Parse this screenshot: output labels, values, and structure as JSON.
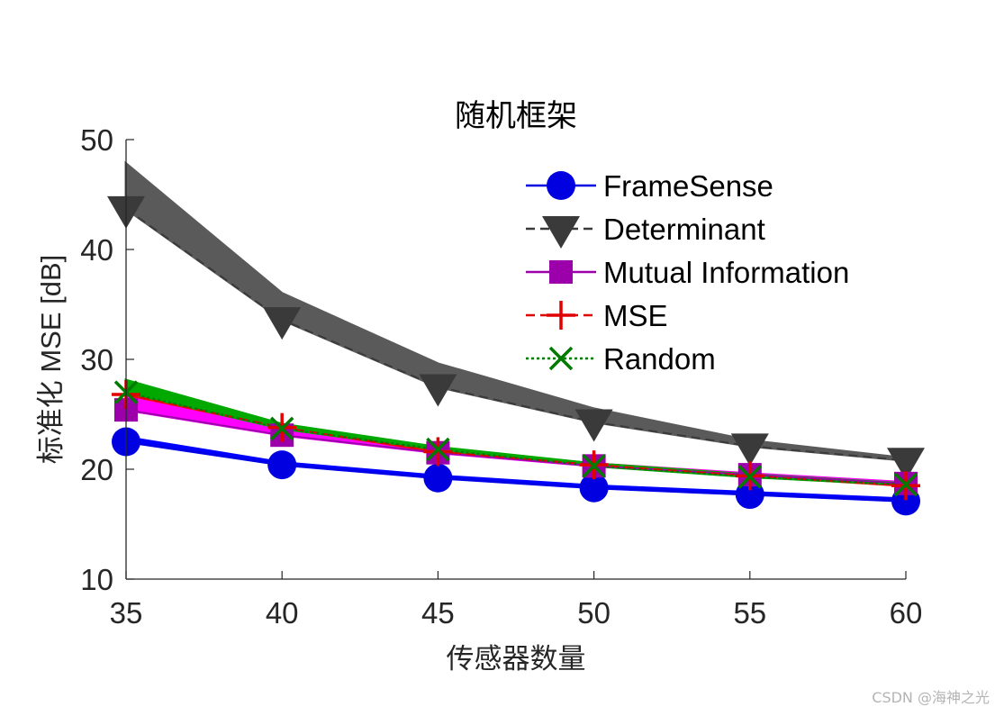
{
  "chart_data": {
    "type": "line",
    "title": "随机框架",
    "xlabel": "传感器数量",
    "ylabel": "标准化 MSE [dB]",
    "x": [
      35,
      40,
      45,
      50,
      55,
      60
    ],
    "xlim": [
      35,
      60
    ],
    "ylim": [
      10,
      50
    ],
    "xticks": [
      35,
      40,
      45,
      50,
      55,
      60
    ],
    "yticks": [
      10,
      20,
      30,
      40,
      50
    ],
    "grid": false,
    "legend_position": "upper right (inside)",
    "series": [
      {
        "name": "FrameSense",
        "color": "#0000e0",
        "band_color": "#0000ff",
        "line_style": "solid",
        "marker": "circle",
        "values": [
          22.5,
          20.4,
          19.2,
          18.3,
          17.7,
          17.1
        ],
        "band_upper": [
          22.9,
          20.6,
          19.4,
          18.5,
          17.9,
          17.3
        ]
      },
      {
        "name": "Determinant",
        "color": "#3a3a3a",
        "band_color": "#5a5a5a",
        "line_style": "dashed",
        "marker": "triangle-down",
        "values": [
          43.7,
          33.6,
          27.5,
          24.3,
          22.1,
          20.8
        ],
        "band_upper": [
          47.8,
          36.0,
          29.6,
          25.5,
          22.6,
          21.0
        ]
      },
      {
        "name": "Mutual Information",
        "color": "#9b00aa",
        "band_color": "#ff00ff",
        "line_style": "solid",
        "marker": "square",
        "values": [
          25.4,
          23.1,
          21.5,
          20.3,
          19.5,
          18.7
        ],
        "band_upper": [
          26.6,
          23.6,
          21.8,
          20.5,
          19.6,
          18.8
        ]
      },
      {
        "name": "MSE",
        "color": "#e00000",
        "band_color": "#ff0000",
        "line_style": "dashed",
        "marker": "plus",
        "values": [
          26.8,
          23.8,
          21.6,
          20.4,
          19.4,
          18.5
        ],
        "band_upper": [
          27.0,
          24.0,
          21.8,
          20.5,
          19.5,
          18.6
        ]
      },
      {
        "name": "Random",
        "color": "#007a00",
        "band_color": "#00a800",
        "line_style": "dotted",
        "marker": "x",
        "values": [
          27.0,
          23.7,
          21.8,
          20.3,
          19.3,
          18.6
        ],
        "band_upper": [
          28.1,
          24.1,
          22.0,
          20.5,
          19.5,
          18.7
        ]
      }
    ]
  },
  "watermark": "CSDN @海神之光"
}
